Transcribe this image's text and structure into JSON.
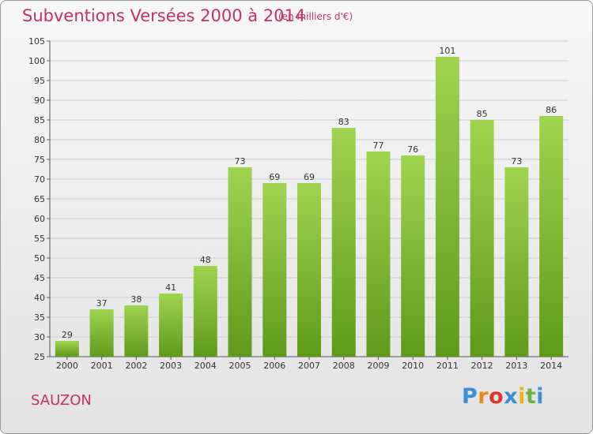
{
  "title": "Subventions Versées 2000 à 2014",
  "subtitle": "(en milliers d'€)",
  "place": "SAUZON",
  "logo": "Proxiti",
  "chart_data": {
    "type": "bar",
    "categories": [
      "2000",
      "2001",
      "2002",
      "2003",
      "2004",
      "2005",
      "2006",
      "2007",
      "2008",
      "2009",
      "2010",
      "2011",
      "2012",
      "2013",
      "2014"
    ],
    "values": [
      29,
      37,
      38,
      41,
      48,
      73,
      69,
      69,
      83,
      77,
      76,
      101,
      85,
      73,
      86
    ],
    "ylim": [
      25,
      105
    ],
    "yticks": [
      25,
      30,
      35,
      40,
      45,
      50,
      55,
      60,
      65,
      70,
      75,
      80,
      85,
      90,
      95,
      100,
      105
    ],
    "grid": true,
    "colors": {
      "bar_top": "#9fd44f",
      "bar_bottom": "#5f9a1a",
      "title": "#c3325f",
      "grid": "#cccccc"
    }
  }
}
